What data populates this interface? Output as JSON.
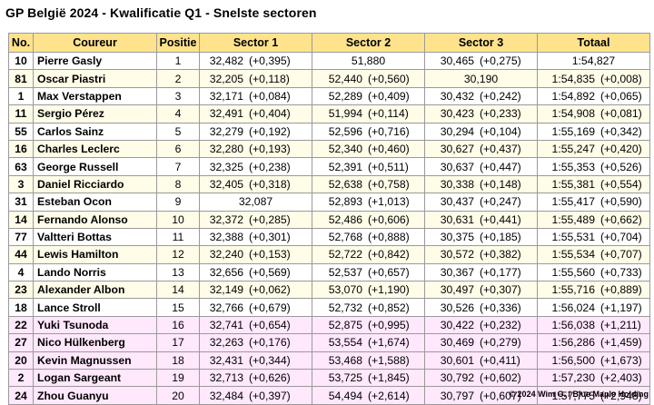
{
  "title": "GP België 2024 - Kwalificatie Q1 - Snelste sectoren",
  "headers": [
    "No.",
    "Coureur",
    "Positie",
    "Sector 1",
    "Sector 2",
    "Sector 3",
    "Totaal"
  ],
  "colors": {
    "header": "#ffe38c",
    "group_a": "#fffce8",
    "group_b": "#ffffff",
    "group_c": "#ffe8fb",
    "border": "#9a9a9a"
  },
  "rows": [
    {
      "no": "10",
      "driver": "Pierre Gasly",
      "pos": "1",
      "s1": "32,482",
      "s1d": "(+0,395)",
      "s2": "51,880",
      "s2d": "",
      "s3": "30,465",
      "s3d": "(+0,275)",
      "tot": "1:54,827",
      "totd": ""
    },
    {
      "no": "81",
      "driver": "Oscar Piastri",
      "pos": "2",
      "s1": "32,205",
      "s1d": "(+0,118)",
      "s2": "52,440",
      "s2d": "(+0,560)",
      "s3": "30,190",
      "s3d": "",
      "tot": "1:54,835",
      "totd": "(+0,008)"
    },
    {
      "no": "1",
      "driver": "Max Verstappen",
      "pos": "3",
      "s1": "32,171",
      "s1d": "(+0,084)",
      "s2": "52,289",
      "s2d": "(+0,409)",
      "s3": "30,432",
      "s3d": "(+0,242)",
      "tot": "1:54,892",
      "totd": "(+0,065)"
    },
    {
      "no": "11",
      "driver": "Sergio Pérez",
      "pos": "4",
      "s1": "32,491",
      "s1d": "(+0,404)",
      "s2": "51,994",
      "s2d": "(+0,114)",
      "s3": "30,423",
      "s3d": "(+0,233)",
      "tot": "1:54,908",
      "totd": "(+0,081)"
    },
    {
      "no": "55",
      "driver": "Carlos Sainz",
      "pos": "5",
      "s1": "32,279",
      "s1d": "(+0,192)",
      "s2": "52,596",
      "s2d": "(+0,716)",
      "s3": "30,294",
      "s3d": "(+0,104)",
      "tot": "1:55,169",
      "totd": "(+0,342)"
    },
    {
      "no": "16",
      "driver": "Charles Leclerc",
      "pos": "6",
      "s1": "32,280",
      "s1d": "(+0,193)",
      "s2": "52,340",
      "s2d": "(+0,460)",
      "s3": "30,627",
      "s3d": "(+0,437)",
      "tot": "1:55,247",
      "totd": "(+0,420)"
    },
    {
      "no": "63",
      "driver": "George Russell",
      "pos": "7",
      "s1": "32,325",
      "s1d": "(+0,238)",
      "s2": "52,391",
      "s2d": "(+0,511)",
      "s3": "30,637",
      "s3d": "(+0,447)",
      "tot": "1:55,353",
      "totd": "(+0,526)"
    },
    {
      "no": "3",
      "driver": "Daniel Ricciardo",
      "pos": "8",
      "s1": "32,405",
      "s1d": "(+0,318)",
      "s2": "52,638",
      "s2d": "(+0,758)",
      "s3": "30,338",
      "s3d": "(+0,148)",
      "tot": "1:55,381",
      "totd": "(+0,554)"
    },
    {
      "no": "31",
      "driver": "Esteban Ocon",
      "pos": "9",
      "s1": "32,087",
      "s1d": "",
      "s2": "52,893",
      "s2d": "(+1,013)",
      "s3": "30,437",
      "s3d": "(+0,247)",
      "tot": "1:55,417",
      "totd": "(+0,590)"
    },
    {
      "no": "14",
      "driver": "Fernando Alonso",
      "pos": "10",
      "s1": "32,372",
      "s1d": "(+0,285)",
      "s2": "52,486",
      "s2d": "(+0,606)",
      "s3": "30,631",
      "s3d": "(+0,441)",
      "tot": "1:55,489",
      "totd": "(+0,662)"
    },
    {
      "no": "77",
      "driver": "Valtteri Bottas",
      "pos": "11",
      "s1": "32,388",
      "s1d": "(+0,301)",
      "s2": "52,768",
      "s2d": "(+0,888)",
      "s3": "30,375",
      "s3d": "(+0,185)",
      "tot": "1:55,531",
      "totd": "(+0,704)"
    },
    {
      "no": "44",
      "driver": "Lewis Hamilton",
      "pos": "12",
      "s1": "32,240",
      "s1d": "(+0,153)",
      "s2": "52,722",
      "s2d": "(+0,842)",
      "s3": "30,572",
      "s3d": "(+0,382)",
      "tot": "1:55,534",
      "totd": "(+0,707)"
    },
    {
      "no": "4",
      "driver": "Lando Norris",
      "pos": "13",
      "s1": "32,656",
      "s1d": "(+0,569)",
      "s2": "52,537",
      "s2d": "(+0,657)",
      "s3": "30,367",
      "s3d": "(+0,177)",
      "tot": "1:55,560",
      "totd": "(+0,733)"
    },
    {
      "no": "23",
      "driver": "Alexander Albon",
      "pos": "14",
      "s1": "32,149",
      "s1d": "(+0,062)",
      "s2": "53,070",
      "s2d": "(+1,190)",
      "s3": "30,497",
      "s3d": "(+0,307)",
      "tot": "1:55,716",
      "totd": "(+0,889)"
    },
    {
      "no": "18",
      "driver": "Lance Stroll",
      "pos": "15",
      "s1": "32,766",
      "s1d": "(+0,679)",
      "s2": "52,732",
      "s2d": "(+0,852)",
      "s3": "30,526",
      "s3d": "(+0,336)",
      "tot": "1:56,024",
      "totd": "(+1,197)"
    },
    {
      "no": "22",
      "driver": "Yuki Tsunoda",
      "pos": "16",
      "s1": "32,741",
      "s1d": "(+0,654)",
      "s2": "52,875",
      "s2d": "(+0,995)",
      "s3": "30,422",
      "s3d": "(+0,232)",
      "tot": "1:56,038",
      "totd": "(+1,211)"
    },
    {
      "no": "27",
      "driver": "Nico Hülkenberg",
      "pos": "17",
      "s1": "32,263",
      "s1d": "(+0,176)",
      "s2": "53,554",
      "s2d": "(+1,674)",
      "s3": "30,469",
      "s3d": "(+0,279)",
      "tot": "1:56,286",
      "totd": "(+1,459)"
    },
    {
      "no": "20",
      "driver": "Kevin Magnussen",
      "pos": "18",
      "s1": "32,431",
      "s1d": "(+0,344)",
      "s2": "53,468",
      "s2d": "(+1,588)",
      "s3": "30,601",
      "s3d": "(+0,411)",
      "tot": "1:56,500",
      "totd": "(+1,673)"
    },
    {
      "no": "2",
      "driver": "Logan Sargeant",
      "pos": "19",
      "s1": "32,713",
      "s1d": "(+0,626)",
      "s2": "53,725",
      "s2d": "(+1,845)",
      "s3": "30,792",
      "s3d": "(+0,602)",
      "tot": "1:57,230",
      "totd": "(+2,403)"
    },
    {
      "no": "24",
      "driver": "Zhou Guanyu",
      "pos": "20",
      "s1": "32,484",
      "s1d": "(+0,397)",
      "s2": "54,494",
      "s2d": "(+2,614)",
      "s3": "30,797",
      "s3d": "(+0,607)",
      "tot": "1:57,775",
      "totd": "(+2,948)"
    }
  ],
  "footer": "© 2024 Wim G. / Blue Maple Holding"
}
